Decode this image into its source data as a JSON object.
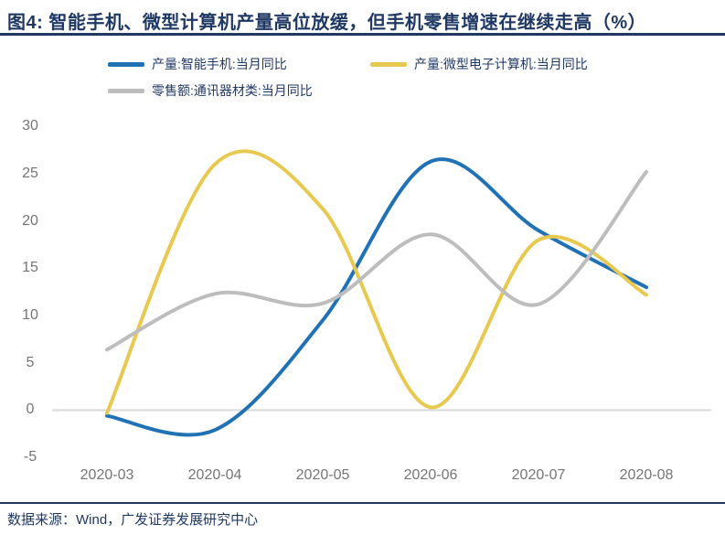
{
  "title": "图4:  智能手机、微型计算机产量高位放缓，但手机零售增速在继续走高（%）",
  "source": "数据来源：Wind，广发证券发展研究中心",
  "colors": {
    "navy_text": "#1F3864",
    "axis_text": "#757575",
    "zero_line": "#DADADA",
    "series_blue": "#2171B5",
    "series_yellow": "#E8C94F",
    "series_gray": "#BDBDBD"
  },
  "chart_data": {
    "type": "line",
    "smooth": true,
    "grid": false,
    "zero_line": true,
    "legend_position": "top-left",
    "x": [
      "2020-03",
      "2020-04",
      "2020-05",
      "2020-06",
      "2020-07",
      "2020-08"
    ],
    "series": [
      {
        "name": "产量:智能手机:当月同比",
        "color": "#2171B5",
        "values": [
          -0.6,
          -2.1,
          9.5,
          26.3,
          19.0,
          13.0
        ]
      },
      {
        "name": "产量:微型电子计算机:当月同比",
        "color": "#E8C94F",
        "values": [
          -0.3,
          26.0,
          21.3,
          0.3,
          18.0,
          12.2
        ]
      },
      {
        "name": "零售额:通讯器材类:当月同比",
        "color": "#BDBDBD",
        "values": [
          6.4,
          12.3,
          11.3,
          18.6,
          11.2,
          25.2
        ]
      }
    ],
    "yticks": [
      30,
      25,
      20,
      15,
      10,
      5,
      0,
      -5
    ],
    "ylim": [
      -5,
      30
    ],
    "ylabel": "",
    "xlabel": ""
  }
}
